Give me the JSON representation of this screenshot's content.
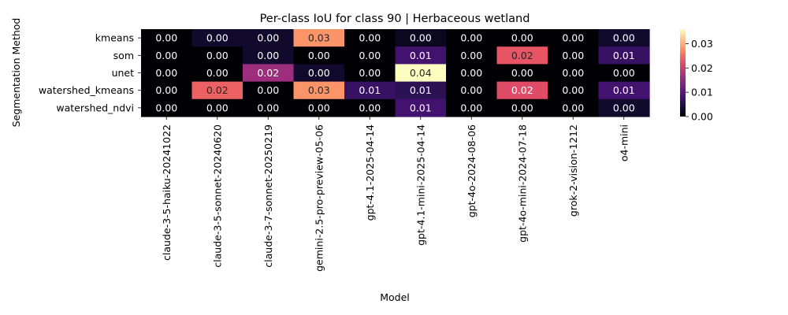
{
  "chart_data": {
    "type": "heatmap",
    "title": "Per-class IoU for class 90 | Herbaceous wetland",
    "xlabel": "Model",
    "ylabel": "Segmentation Method",
    "x_categories": [
      "claude-3-5-haiku-20241022",
      "claude-3-5-sonnet-20240620",
      "claude-3-7-sonnet-20250219",
      "gemini-2.5-pro-preview-05-06",
      "gpt-4.1-2025-04-14",
      "gpt-4.1-mini-2025-04-14",
      "gpt-4o-2024-08-06",
      "gpt-4o-mini-2024-07-18",
      "grok-2-vision-1212",
      "o4-mini"
    ],
    "y_categories": [
      "kmeans",
      "som",
      "unet",
      "watershed_kmeans",
      "watershed_ndvi"
    ],
    "values": [
      [
        0.0,
        0.003,
        0.003,
        0.028,
        0.0,
        0.002,
        0.0,
        0.0,
        0.0,
        0.003
      ],
      [
        0.0,
        0.0,
        0.003,
        0.0,
        0.0,
        0.008,
        0.0,
        0.023,
        0.0,
        0.007
      ],
      [
        0.0,
        0.0,
        0.016,
        0.003,
        0.0,
        0.036,
        0.0,
        0.0,
        0.0,
        0.0
      ],
      [
        0.0,
        0.024,
        0.0,
        0.028,
        0.007,
        0.006,
        0.0,
        0.022,
        0.0,
        0.008
      ],
      [
        0.0,
        0.0,
        0.0,
        0.0,
        0.0,
        0.008,
        0.0,
        0.0,
        0.0,
        0.003
      ]
    ],
    "cell_labels": [
      [
        "0.00",
        "0.00",
        "0.00",
        "0.03",
        "0.00",
        "0.00",
        "0.00",
        "0.00",
        "0.00",
        "0.00"
      ],
      [
        "0.00",
        "0.00",
        "0.00",
        "0.00",
        "0.00",
        "0.01",
        "0.00",
        "0.02",
        "0.00",
        "0.01"
      ],
      [
        "0.00",
        "0.00",
        "0.02",
        "0.00",
        "0.00",
        "0.04",
        "0.00",
        "0.00",
        "0.00",
        "0.00"
      ],
      [
        "0.00",
        "0.02",
        "0.00",
        "0.03",
        "0.01",
        "0.01",
        "0.00",
        "0.02",
        "0.00",
        "0.01"
      ],
      [
        "0.00",
        "0.00",
        "0.00",
        "0.00",
        "0.00",
        "0.01",
        "0.00",
        "0.00",
        "0.00",
        "0.00"
      ]
    ],
    "colormap": "magma",
    "vmin": 0,
    "vmax": 0.036,
    "colorbar_ticks": [
      "0.00",
      "0.01",
      "0.02",
      "0.03"
    ],
    "colorbar_tick_values": [
      0,
      0.01,
      0.02,
      0.03
    ],
    "legend_placement": "right"
  }
}
